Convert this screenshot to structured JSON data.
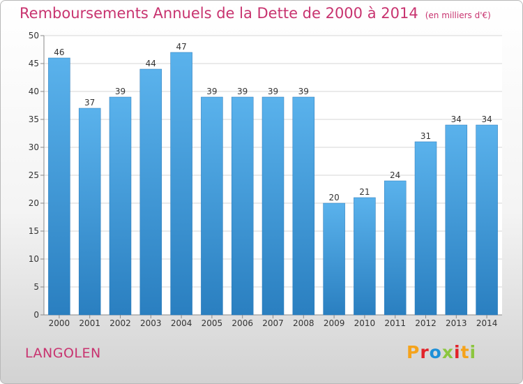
{
  "header": {
    "title": "Remboursements Annuels de la Dette de 2000 à 2014",
    "unit": "(en milliers d'€)"
  },
  "footer": {
    "commune": "LANGOLEN",
    "logo_text": "Proxiti",
    "logo_colors": [
      "#f5a31b",
      "#e2232a",
      "#1e90d8",
      "#8cc63f",
      "#e2232a",
      "#f5a31b",
      "#8cc63f"
    ]
  },
  "colors": {
    "bar_top": "#5ab2ec",
    "bar_bottom": "#2a7fc0",
    "accent": "#c8336f"
  },
  "chart_data": {
    "type": "bar",
    "title": "Remboursements Annuels de la Dette de 2000 à 2014",
    "subtitle": "(en milliers d'€)",
    "categories": [
      "2000",
      "2001",
      "2002",
      "2003",
      "2004",
      "2005",
      "2006",
      "2007",
      "2008",
      "2009",
      "2010",
      "2011",
      "2012",
      "2013",
      "2014"
    ],
    "values": [
      46,
      37,
      39,
      44,
      47,
      39,
      39,
      39,
      39,
      20,
      21,
      24,
      31,
      34,
      34
    ],
    "ylim": [
      0,
      50
    ],
    "yticks": [
      0,
      5,
      10,
      15,
      20,
      25,
      30,
      35,
      40,
      45,
      50
    ],
    "grid": true,
    "legend": "none"
  }
}
